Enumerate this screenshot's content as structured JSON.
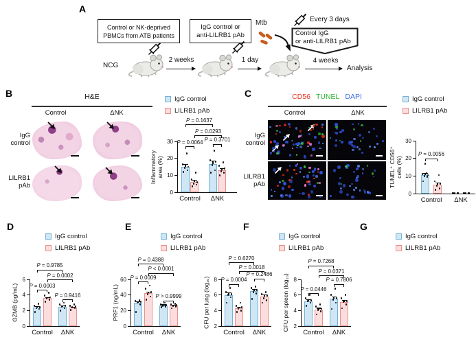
{
  "colors": {
    "igg_fill": "#cfe6f4",
    "igg_border": "#74b2d7",
    "pab_fill": "#fbdddd",
    "pab_border": "#e8918e",
    "cd56": "#e8342a",
    "tunel": "#2db32f",
    "dapi": "#3a6fe0"
  },
  "legend": {
    "igg": "IgG control",
    "pab": "LILRB1 pAb"
  },
  "panel_a": {
    "label": "A",
    "box1": [
      "Control or NK-deprived",
      "PBMCs from ATB patients"
    ],
    "box2": [
      "IgG control or",
      "anti-LILRB1 pAb"
    ],
    "mtb": "Mtb",
    "every": "Every 3 days",
    "box3": [
      "Control IgG",
      "or anti-LILRB1 pAb"
    ],
    "ncg": "NCG",
    "t1": "2 weeks",
    "t2": "1 day",
    "t3": "4 weeks",
    "analysis": "Analysis"
  },
  "panel_b": {
    "label": "B",
    "title": "H&E",
    "cols": [
      "Control",
      "ΔNK"
    ],
    "rows": [
      [
        "IgG",
        "control"
      ],
      [
        "LILRB1",
        "pAb"
      ]
    ]
  },
  "panel_c": {
    "label": "C",
    "stains": [
      "CD56",
      "TUNEL",
      "DAPI"
    ],
    "cols": [
      "Control",
      "ΔNK"
    ],
    "rows": [
      [
        "IgG",
        "control"
      ],
      [
        "LILRB1",
        "pAb"
      ]
    ]
  },
  "panel_d": {
    "label": "D"
  },
  "panel_e": {
    "label": "E"
  },
  "panel_f": {
    "label": "F"
  },
  "panel_g": {
    "label": "G"
  },
  "chart_data": [
    {
      "id": "B",
      "type": "bar",
      "ylabel": "Inflammatory\narea (%)",
      "ylim": [
        0,
        30
      ],
      "yticks": [
        0,
        10,
        20,
        30
      ],
      "categories": [
        "Control",
        "ΔNK"
      ],
      "series": [
        {
          "name": "IgG control",
          "values": [
            15,
            16.5
          ],
          "err": [
            1.8,
            2.2
          ],
          "points": [
            [
              12,
              13,
              14.5,
              15,
              16.5,
              23
            ],
            [
              11.5,
              13,
              16,
              18,
              19,
              24.5
            ]
          ]
        },
        {
          "name": "LILRB1 pAb",
          "values": [
            6,
            13
          ],
          "err": [
            1.5,
            1.3
          ],
          "points": [
            [
              3.5,
              4.5,
              5,
              6,
              7.5,
              11.5
            ],
            [
              10,
              11.5,
              12.5,
              14,
              15.5,
              17.5
            ]
          ]
        }
      ],
      "pvalues": [
        {
          "text": "P = 0.0064",
          "from": 0,
          "to": 1,
          "y": 27
        },
        {
          "text": "P = 0.3701",
          "from": 2,
          "to": 3,
          "y": 28.5
        },
        {
          "text": "P = 0.0293",
          "from": 1,
          "to": 3,
          "y": 33.5
        },
        {
          "text": "P = 0.1637",
          "from": 0,
          "to": 2,
          "y": 40
        }
      ]
    },
    {
      "id": "C",
      "type": "bar",
      "ylabel": "TUNEL⁺ CD56⁺\ncells (%)",
      "ylim": [
        0,
        30
      ],
      "yticks": [
        0,
        10,
        20,
        30
      ],
      "categories": [
        "Control",
        "ΔNK"
      ],
      "series": [
        {
          "name": "IgG control",
          "values": [
            10.5,
            0.15
          ],
          "err": [
            1.2,
            0
          ],
          "points": [
            [
              7,
              9.5,
              10,
              10.5,
              11,
              11.5,
              17
            ],
            [
              0.2,
              0.2,
              0.25,
              0.25,
              0.3
            ]
          ]
        },
        {
          "name": "LILRB1 pAb",
          "values": [
            5,
            0.15
          ],
          "err": [
            1.3,
            0
          ],
          "points": [
            [
              2,
              3,
              4.5,
              5.5,
              7,
              10.5
            ],
            [
              0.2,
              0.2,
              0.25,
              0.25,
              0.3
            ]
          ]
        }
      ],
      "pvalues": [
        {
          "text": "P = 0.0056",
          "from": 0,
          "to": 1,
          "y": 20
        }
      ]
    },
    {
      "id": "D",
      "type": "bar",
      "ylabel": "GZMB (pg/mL)",
      "ylim": [
        0,
        6
      ],
      "yticks": [
        0,
        2,
        4,
        6
      ],
      "categories": [
        "Control",
        "ΔNK"
      ],
      "series": [
        {
          "name": "IgG control",
          "values": [
            2.4,
            2.5
          ],
          "err": [
            0.15,
            0.15
          ],
          "points": [
            [
              1.8,
              2.2,
              2.3,
              2.4,
              2.6,
              2.9
            ],
            [
              2.0,
              2.3,
              2.5,
              2.6,
              2.8,
              3.0
            ]
          ]
        },
        {
          "name": "LILRB1 pAb",
          "values": [
            3.6,
            2.4
          ],
          "err": [
            0.15,
            0.1
          ],
          "points": [
            [
              3.1,
              3.4,
              3.6,
              3.7,
              3.9,
              4.3
            ],
            [
              2.1,
              2.3,
              2.4,
              2.5,
              2.6,
              2.8
            ]
          ]
        }
      ],
      "pvalues": [
        {
          "text": "P = 0.9416",
          "from": 2,
          "to": 3,
          "y": 3.4
        },
        {
          "text": "P = 0.0003",
          "from": 0,
          "to": 1,
          "y": 4.65
        },
        {
          "text": "P = 0.0002",
          "from": 1,
          "to": 3,
          "y": 6.0
        },
        {
          "text": "P = 0.9785",
          "from": 0,
          "to": 2,
          "y": 7.25
        }
      ]
    },
    {
      "id": "E",
      "type": "bar",
      "ylabel": "PRF1 (ng/mL)",
      "ylim": [
        0,
        60
      ],
      "yticks": [
        0,
        20,
        40,
        60
      ],
      "categories": [
        "Control",
        "ΔNK"
      ],
      "series": [
        {
          "name": "IgG control",
          "values": [
            30,
            26.5
          ],
          "err": [
            2,
            1.3
          ],
          "points": [
            [
              18,
              28,
              30,
              31,
              32,
              33
            ],
            [
              24,
              25,
              26,
              27,
              28,
              30
            ]
          ]
        },
        {
          "name": "LILRB1 pAb",
          "values": [
            42,
            26.5
          ],
          "err": [
            2.5,
            1.2
          ],
          "points": [
            [
              34,
              38,
              41,
              44,
              48,
              52
            ],
            [
              23,
              25,
              26,
              27,
              28,
              29
            ]
          ]
        }
      ],
      "pvalues": [
        {
          "text": "P > 0.9999",
          "from": 2,
          "to": 3,
          "y": 33
        },
        {
          "text": "P = 0.0009",
          "from": 0,
          "to": 1,
          "y": 57
        },
        {
          "text": "P < 0.0001",
          "from": 1,
          "to": 3,
          "y": 68
        },
        {
          "text": "P = 0.4388",
          "from": 0,
          "to": 2,
          "y": 80
        }
      ]
    },
    {
      "id": "F",
      "type": "bar",
      "ylabel": "CFU per lung (log₁₀)",
      "ylim": [
        2,
        8
      ],
      "yticks": [
        2,
        4,
        6,
        8
      ],
      "categories": [
        "Control",
        "ΔNK"
      ],
      "series": [
        {
          "name": "IgG control",
          "values": [
            6.0,
            6.5
          ],
          "err": [
            0.3,
            0.25
          ],
          "points": [
            [
              5.0,
              5.7,
              6.0,
              6.1,
              6.4,
              6.9
            ],
            [
              5.5,
              6.2,
              6.4,
              6.6,
              6.9,
              7.1
            ]
          ]
        },
        {
          "name": "LILRB1 pAb",
          "values": [
            4.3,
            5.8
          ],
          "err": [
            0.2,
            0.3
          ],
          "points": [
            [
              3.8,
              4.0,
              4.2,
              4.4,
              4.6,
              5.0
            ],
            [
              5.0,
              5.3,
              5.6,
              5.9,
              6.1,
              6.4
            ]
          ]
        }
      ],
      "pvalues": [
        {
          "text": "P = 0.0004",
          "from": 0,
          "to": 1,
          "y": 7.4
        },
        {
          "text": "P = 0.2486",
          "from": 2,
          "to": 3,
          "y": 8.1
        },
        {
          "text": "P = 0.0018",
          "from": 1,
          "to": 3,
          "y": 9.05
        },
        {
          "text": "P = 0.6270",
          "from": 0,
          "to": 2,
          "y": 10.2
        }
      ]
    },
    {
      "id": "G",
      "type": "bar",
      "ylabel": "CFU per spleen (log₁₀)",
      "ylim": [
        2,
        8
      ],
      "yticks": [
        2,
        4,
        6,
        8
      ],
      "categories": [
        "Control",
        "ΔNK"
      ],
      "series": [
        {
          "name": "IgG control",
          "values": [
            5.2,
            5.5
          ],
          "err": [
            0.25,
            0.3
          ],
          "points": [
            [
              4.6,
              5.0,
              5.2,
              5.3,
              5.6,
              6.0
            ],
            [
              4.2,
              5.0,
              5.4,
              5.6,
              6.0,
              6.8
            ]
          ]
        },
        {
          "name": "LILRB1 pAb",
          "values": [
            4.1,
            5.1
          ],
          "err": [
            0.25,
            0.25
          ],
          "points": [
            [
              3.5,
              3.9,
              4.1,
              4.2,
              4.5,
              4.8
            ],
            [
              4.3,
              4.8,
              5.1,
              5.2,
              5.6,
              6.0
            ]
          ]
        }
      ],
      "pvalues": [
        {
          "text": "P = 0.0446",
          "from": 0,
          "to": 1,
          "y": 6.2
        },
        {
          "text": "P = 0.7806",
          "from": 2,
          "to": 3,
          "y": 7.4
        },
        {
          "text": "P = 0.0371",
          "from": 1,
          "to": 3,
          "y": 8.5
        },
        {
          "text": "P = 0.7268",
          "from": 0,
          "to": 2,
          "y": 9.8
        }
      ]
    }
  ]
}
